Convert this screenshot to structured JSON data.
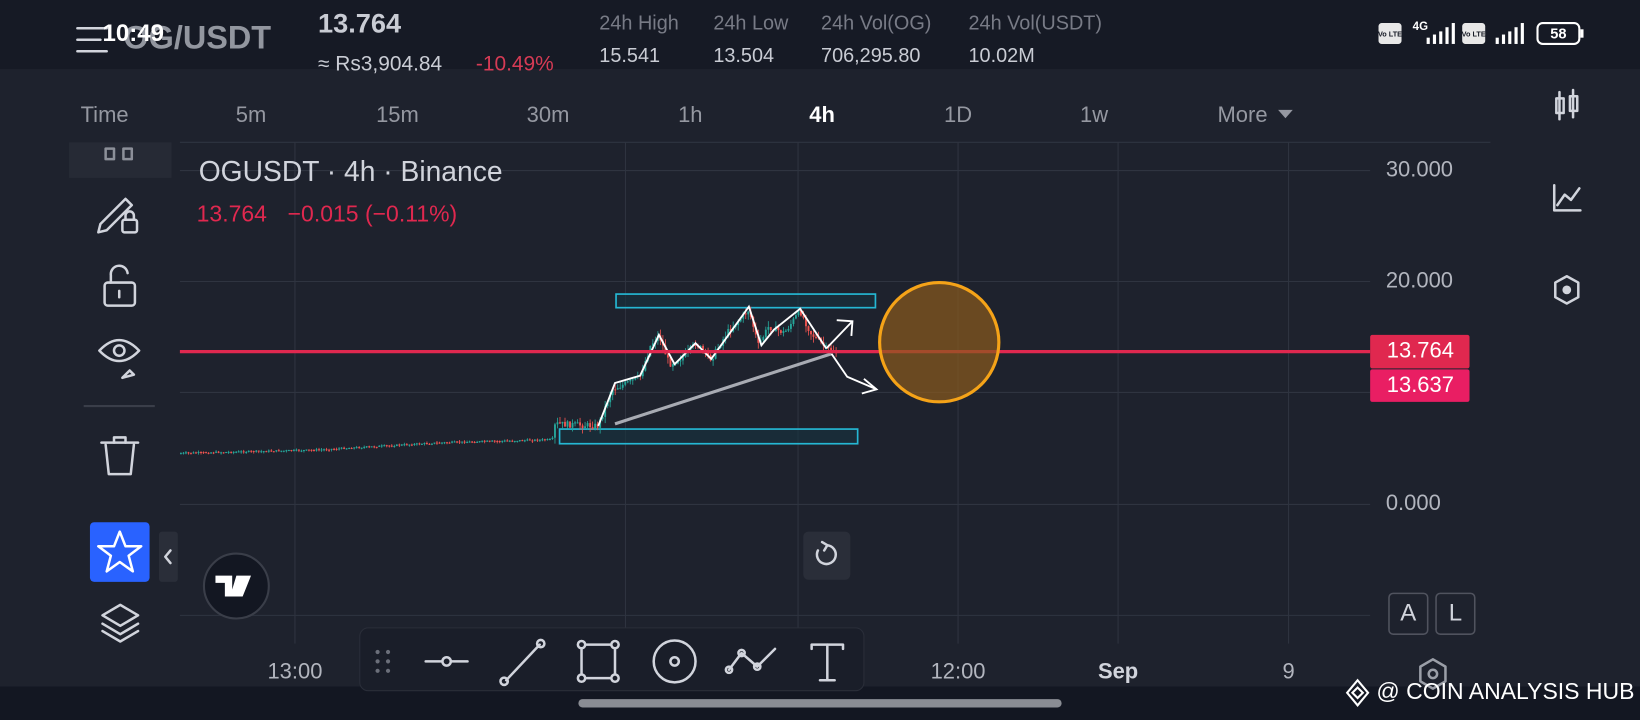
{
  "status_bar": {
    "time": "10:49",
    "volte": "Vo LTE",
    "network": "4G",
    "battery": "58"
  },
  "header": {
    "pair": "OG/USDT",
    "price": "13.764",
    "local_price": "≈ Rs3,904.84",
    "change": "-10.49%",
    "stats": [
      {
        "label": "24h High",
        "value": "15.541"
      },
      {
        "label": "24h Low",
        "value": "13.504"
      },
      {
        "label": "24h Vol(OG)",
        "value": "706,295.80"
      },
      {
        "label": "24h Vol(USDT)",
        "value": "10.02M"
      }
    ]
  },
  "timeframes": [
    "Time",
    "5m",
    "15m",
    "30m",
    "1h",
    "4h",
    "1D",
    "1w",
    "More"
  ],
  "chart": {
    "title": "OGUSDT · 4h · Binance",
    "last": "13.764",
    "change": "−0.015 (−0.11%)",
    "y_labels": [
      "30.000",
      "20.000",
      "0.000"
    ],
    "price_tags": [
      "13.764",
      "13.637"
    ],
    "x_labels": [
      "13:00",
      "12:00",
      "Sep",
      "9"
    ]
  },
  "scale_buttons": [
    "A",
    "L"
  ],
  "watermark": "@ COIN ANALYSIS HUB"
}
